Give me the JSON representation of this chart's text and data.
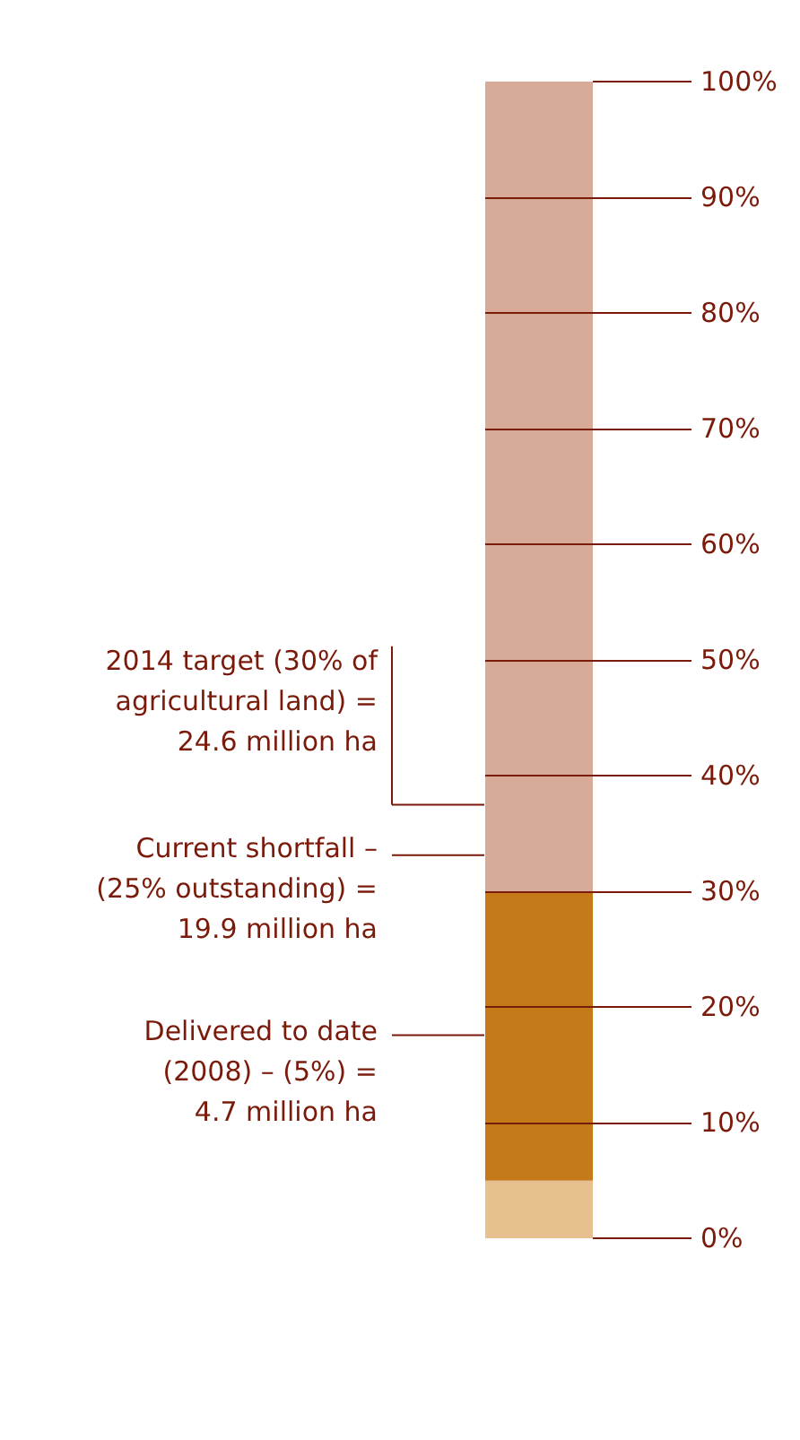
{
  "chart_data": {
    "type": "bar",
    "stacked": true,
    "categories": [
      null
    ],
    "series": [
      {
        "color": "#e8c090",
        "values": [
          5
        ]
      },
      {
        "color": "#c47a18",
        "values": [
          25
        ]
      }
    ],
    "ylim": [
      0,
      100
    ],
    "yticks": [
      {
        "value": 0,
        "label": "0%"
      },
      {
        "value": 10,
        "label": "10%"
      },
      {
        "value": 20,
        "label": "20%"
      },
      {
        "value": 30,
        "label": "30%"
      },
      {
        "value": 40,
        "label": "40%"
      },
      {
        "value": 50,
        "label": "50%"
      },
      {
        "value": 60,
        "label": "60%"
      },
      {
        "value": 70,
        "label": "70%"
      },
      {
        "value": 80,
        "label": "80%"
      },
      {
        "value": 90,
        "label": "90%"
      },
      {
        "value": 100,
        "label": "100%"
      }
    ],
    "bands": [
      {
        "axis": "y",
        "from": 0,
        "to": 100,
        "color": "#d8aa98"
      }
    ],
    "annotations": [
      "2014 target (30% of\nagricultural land) =\n24.6 million ha",
      "Current shortfall –\n(25% outstanding) =\n19.9 million ha",
      "Delivered to date\n(2008) – (5%) =\n4.7 million ha"
    ],
    "grid": "y"
  }
}
